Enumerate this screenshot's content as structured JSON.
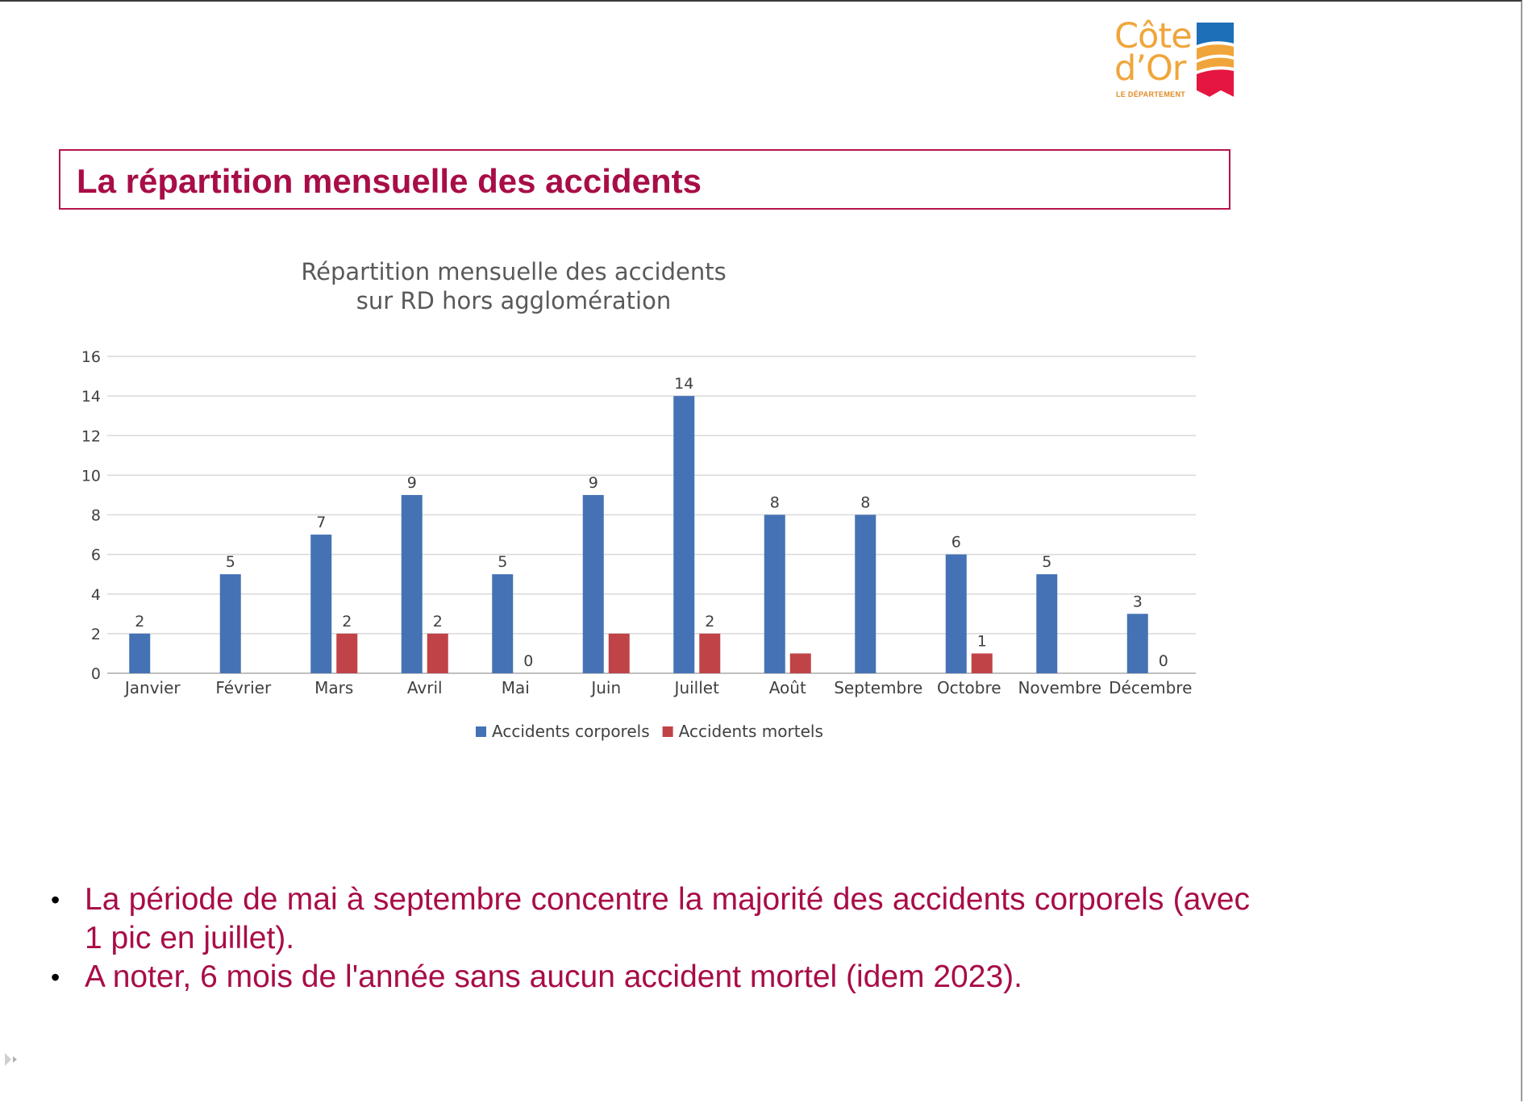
{
  "logo": {
    "line1": "Côte",
    "line2": "d’Or",
    "subtitle": "LE DÉPARTEMENT",
    "colors": {
      "text": "#f0a53a",
      "blue": "#1d6fb8",
      "orange": "#f0a53a",
      "red": "#e5163f"
    }
  },
  "slide_title": "La répartition mensuelle des accidents",
  "chart_data": {
    "type": "bar",
    "title": [
      "Répartition mensuelle des accidents",
      "sur RD hors agglomération"
    ],
    "categories": [
      "Janvier",
      "Février",
      "Mars",
      "Avril",
      "Mai",
      "Juin",
      "Juillet",
      "Août",
      "Septembre",
      "Octobre",
      "Novembre",
      "Décembre"
    ],
    "series": [
      {
        "name": "Accidents corporels",
        "color": "#4472b4",
        "values": [
          2,
          5,
          7,
          9,
          5,
          9,
          14,
          8,
          8,
          6,
          5,
          3
        ],
        "labels": [
          "2",
          "5",
          "7",
          "9",
          "5",
          "9",
          "14",
          "8",
          "8",
          "6",
          "5",
          "3"
        ]
      },
      {
        "name": "Accidents mortels",
        "color": "#bf4347",
        "values": [
          0,
          0,
          2,
          2,
          0,
          2,
          2,
          1,
          0,
          1,
          0,
          0
        ],
        "labels": [
          "",
          "",
          "2",
          "2",
          "0",
          "",
          "2",
          "",
          "",
          "1",
          "",
          "0"
        ]
      }
    ],
    "ylim": [
      0,
      16
    ],
    "yticks": [
      0,
      2,
      4,
      6,
      8,
      10,
      12,
      14,
      16
    ],
    "grid": true,
    "legend_position": "bottom-center"
  },
  "bullets": [
    "La période de mai à septembre concentre la majorité des accidents corporels (avec 1 pic en juillet).",
    "A noter, 6 mois de l'année sans aucun accident mortel (idem 2023)."
  ],
  "bullet_symbol": "•"
}
